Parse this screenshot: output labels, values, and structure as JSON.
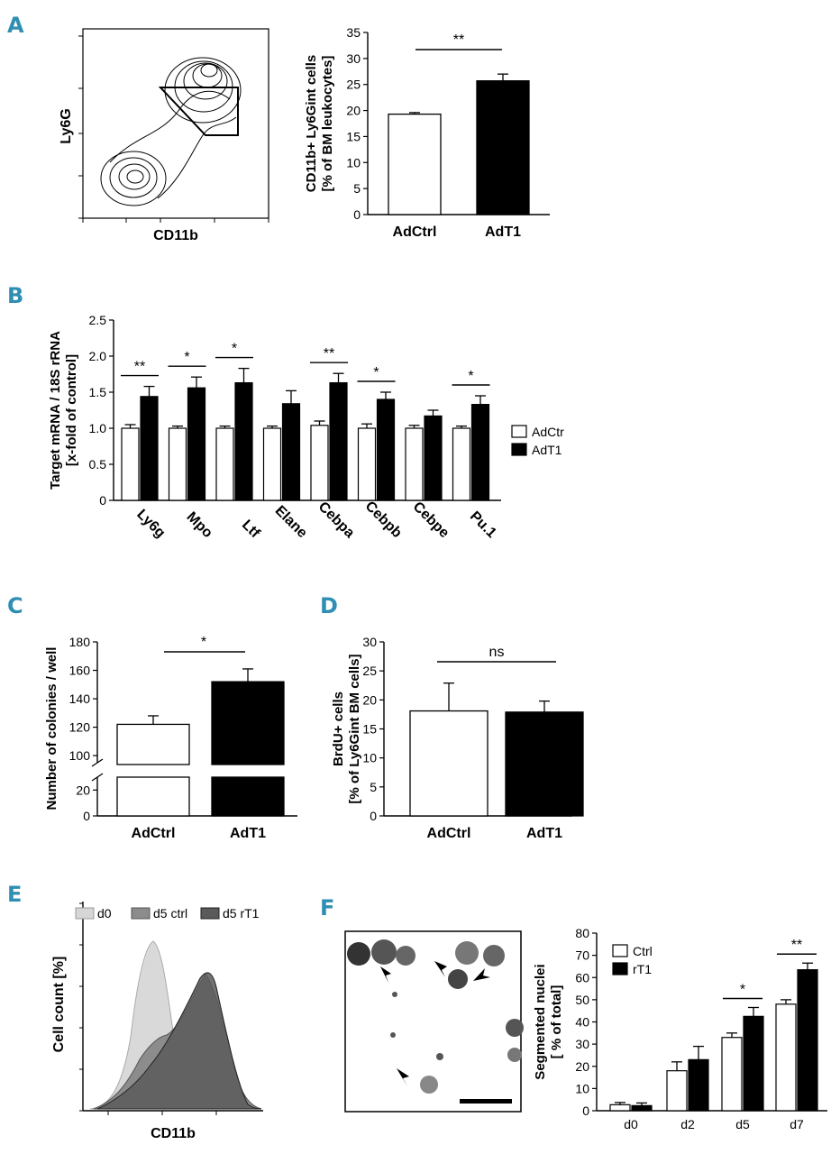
{
  "panels": {
    "A": "A",
    "B": "B",
    "C": "C",
    "D": "D",
    "E": "E",
    "F": "F"
  },
  "flow_A": {
    "ylabel": "Ly6G",
    "xlabel": "CD11b"
  },
  "flow_E": {
    "ylabel": "Cell count [%]",
    "xlabel": "CD11b",
    "legend": [
      "d0",
      "d5 ctrl",
      "d5 rT1"
    ],
    "colors": {
      "d0": "#d6d6d6",
      "d5 ctrl": "#8c8c8c",
      "d5 rT1": "#5a5a5a"
    }
  },
  "micrograph_F": {
    "description_name": "segmented-nuclei-micrograph"
  },
  "chart_data": [
    {
      "id": "A",
      "type": "bar",
      "categories": [
        "AdCtrl",
        "AdT1"
      ],
      "values": [
        19.3,
        25.7
      ],
      "errors": [
        0.3,
        1.3
      ],
      "colors": [
        "#ffffff",
        "#000000"
      ],
      "ylim": [
        0,
        35
      ],
      "yticks": [
        "0",
        "5",
        "10",
        "15",
        "20",
        "25",
        "30",
        "35"
      ],
      "ylabel_line1": "CD11b+ Ly6Gint cells",
      "ylabel_line2": "[% of BM leukocytes]",
      "significance": [
        {
          "pair": [
            0,
            1
          ],
          "label": "**"
        }
      ]
    },
    {
      "id": "B",
      "type": "bar",
      "categories": [
        "Ly6g",
        "Mpo",
        "Ltf",
        "Elane",
        "Cebpa",
        "Cebpb",
        "Cebpe",
        "Pu.1"
      ],
      "series": [
        {
          "name": "AdCtr",
          "color": "#ffffff",
          "values": [
            1.0,
            1.0,
            1.0,
            1.0,
            1.04,
            1.0,
            1.0,
            1.0
          ],
          "errors": [
            0.05,
            0.03,
            0.03,
            0.03,
            0.06,
            0.06,
            0.04,
            0.03
          ]
        },
        {
          "name": "AdT1",
          "color": "#000000",
          "values": [
            1.44,
            1.56,
            1.63,
            1.34,
            1.63,
            1.4,
            1.17,
            1.33
          ],
          "errors": [
            0.14,
            0.15,
            0.2,
            0.18,
            0.13,
            0.1,
            0.08,
            0.12
          ]
        }
      ],
      "ylim": [
        0,
        2.5
      ],
      "yticks": [
        "0",
        "0.5",
        "1.0",
        "1.5",
        "2.0",
        "2.5"
      ],
      "ylabel_line1": "Target mRNA / 18S rRNA",
      "ylabel_line2": "[x-fold of control]",
      "significance": [
        "**",
        "*",
        "*",
        "",
        "**",
        "*",
        "",
        "*"
      ]
    },
    {
      "id": "C",
      "type": "bar",
      "categories": [
        "AdCtrl",
        "AdT1"
      ],
      "values": [
        122,
        152
      ],
      "errors": [
        6,
        9
      ],
      "colors": [
        "#ffffff",
        "#000000"
      ],
      "broken_axis": {
        "lower": [
          0,
          30
        ],
        "upper": [
          95,
          180
        ]
      },
      "yticks": [
        "0",
        "20",
        "100",
        "120",
        "140",
        "160",
        "180"
      ],
      "ylabel": "Number of colonies / well",
      "significance": [
        {
          "pair": [
            0,
            1
          ],
          "label": "*"
        }
      ]
    },
    {
      "id": "D",
      "type": "bar",
      "categories": [
        "AdCtrl",
        "AdT1"
      ],
      "values": [
        18.1,
        17.9
      ],
      "errors": [
        4.8,
        1.9
      ],
      "colors": [
        "#ffffff",
        "#000000"
      ],
      "ylim": [
        0,
        30
      ],
      "yticks": [
        "0",
        "5",
        "10",
        "15",
        "20",
        "25",
        "30"
      ],
      "ylabel_line1": "BrdU+ cells",
      "ylabel_line2": "[% of Ly6Gint BM cells]",
      "significance": [
        {
          "pair": [
            0,
            1
          ],
          "label": "ns"
        }
      ]
    },
    {
      "id": "F",
      "type": "bar",
      "categories": [
        "d0",
        "d2",
        "d5",
        "d7"
      ],
      "series": [
        {
          "name": "Ctrl",
          "color": "#ffffff",
          "values": [
            2.7,
            18,
            33,
            48
          ],
          "errors": [
            1,
            4,
            2,
            2
          ]
        },
        {
          "name": "rT1",
          "color": "#000000",
          "values": [
            2.3,
            23,
            42.5,
            63.5
          ],
          "errors": [
            1.2,
            6,
            4,
            3
          ]
        }
      ],
      "ylim": [
        0,
        80
      ],
      "yticks": [
        "0",
        "10",
        "20",
        "30",
        "40",
        "50",
        "60",
        "70",
        "80"
      ],
      "ylabel_line1": "Segmented nuclei",
      "ylabel_line2": "[ % of total]",
      "significance": [
        "",
        "",
        "*",
        "**"
      ]
    }
  ]
}
